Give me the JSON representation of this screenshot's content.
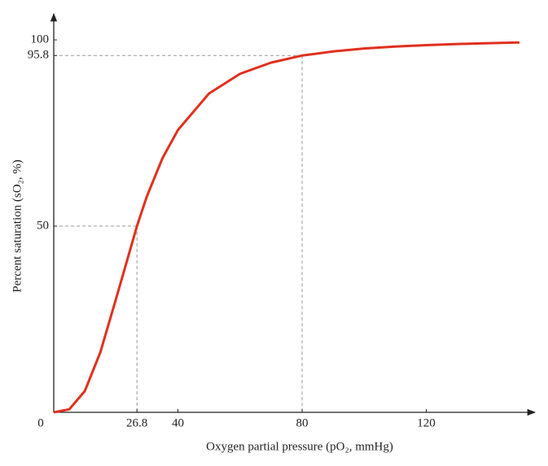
{
  "chart_data": {
    "type": "line",
    "x_label": "Oxygen partial pressure (pO₂, mmHg)",
    "y_label": "Percent saturation (sO₂, %)",
    "x": [
      0,
      5,
      10,
      15,
      20,
      26.8,
      30,
      35,
      40,
      50,
      60,
      70,
      80,
      90,
      100,
      110,
      120,
      130,
      140,
      150
    ],
    "series": [
      {
        "color": "#e0301e",
        "values": [
          0,
          0.8,
          5.7,
          16.1,
          30.3,
          50,
          58.0,
          68.2,
          75.8,
          85.6,
          90.9,
          93.9,
          95.8,
          96.9,
          97.7,
          98.2,
          98.6,
          98.9,
          99.1,
          99.3
        ]
      }
    ],
    "xlim": [
      0,
      155
    ],
    "ylim": [
      0,
      107
    ],
    "xticks": [
      0,
      26.8,
      40,
      80,
      120
    ],
    "yticks": [
      50,
      95.8,
      100
    ],
    "reference_points": [
      {
        "x": 26.8,
        "y": 50
      },
      {
        "x": 80,
        "y": 95.8
      }
    ]
  }
}
